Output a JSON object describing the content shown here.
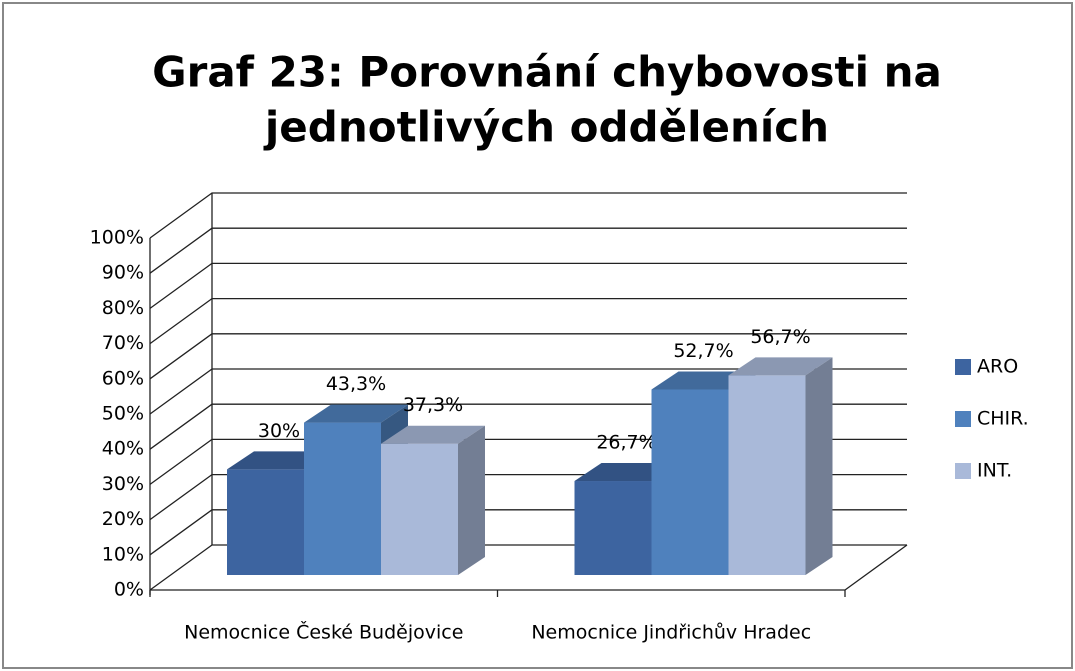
{
  "chart_data": {
    "type": "bar3d",
    "title": [
      "Graf 23: Porovnání chybovosti na",
      "jednotlivých odděleních"
    ],
    "categories": [
      "Nemocnice České Budějovice",
      "Nemocnice Jindřichův Hradec"
    ],
    "series": [
      {
        "name": "ARO",
        "color": "#3d64a0",
        "values": [
          30,
          26.7
        ],
        "value_labels": [
          "30%",
          "26,7%"
        ]
      },
      {
        "name": "CHIR.",
        "color": "#4f81bd",
        "values": [
          43.3,
          52.7
        ],
        "value_labels": [
          "43,3%",
          "52,7%"
        ]
      },
      {
        "name": "INT.",
        "color": "#a9b9d9",
        "values": [
          37.3,
          56.7
        ],
        "value_labels": [
          "37,3%",
          "56,7%"
        ]
      }
    ],
    "ylim": [
      0,
      100
    ],
    "yticks": [
      {
        "value": 0,
        "label": "0%"
      },
      {
        "value": 10,
        "label": "10%"
      },
      {
        "value": 20,
        "label": "20%"
      },
      {
        "value": 30,
        "label": "30%"
      },
      {
        "value": 40,
        "label": "40%"
      },
      {
        "value": 50,
        "label": "50%"
      },
      {
        "value": 60,
        "label": "60%"
      },
      {
        "value": 70,
        "label": "70%"
      },
      {
        "value": 80,
        "label": "80%"
      },
      {
        "value": 90,
        "label": "90%"
      },
      {
        "value": 100,
        "label": "100%"
      }
    ],
    "grid": true,
    "legend": "right"
  }
}
